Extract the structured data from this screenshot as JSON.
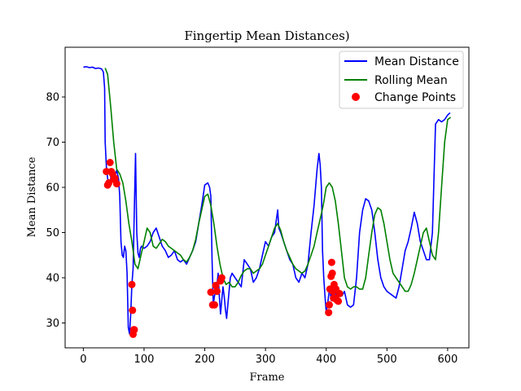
{
  "chart_data": {
    "type": "line",
    "title": "Fingertip Mean Distances)",
    "xlabel": "Frame",
    "ylabel": "Mean Distance",
    "xlim": [
      -30,
      635
    ],
    "ylim": [
      24.5,
      91
    ],
    "xticks": [
      0,
      100,
      200,
      300,
      400,
      500,
      600
    ],
    "yticks": [
      30,
      40,
      50,
      60,
      70,
      80
    ],
    "legend_position": "top-right",
    "grid": false,
    "series": [
      {
        "name": "Mean Distance",
        "kind": "line",
        "color": "#0000ff",
        "x": [
          0,
          5,
          10,
          15,
          20,
          25,
          30,
          33,
          35,
          36,
          38,
          40,
          42,
          44,
          46,
          48,
          50,
          52,
          55,
          58,
          60,
          62,
          64,
          66,
          68,
          70,
          72,
          74,
          76,
          78,
          80,
          82,
          84,
          86,
          88,
          90,
          92,
          94,
          96,
          100,
          105,
          110,
          115,
          120,
          125,
          130,
          135,
          140,
          145,
          150,
          155,
          160,
          165,
          170,
          175,
          180,
          185,
          190,
          195,
          200,
          205,
          208,
          210,
          212,
          214,
          216,
          218,
          220,
          222,
          224,
          226,
          228,
          230,
          232,
          234,
          236,
          238,
          240,
          242,
          245,
          250,
          255,
          260,
          265,
          270,
          275,
          280,
          285,
          290,
          295,
          300,
          305,
          310,
          315,
          318,
          320,
          322,
          325,
          330,
          335,
          340,
          345,
          350,
          355,
          360,
          365,
          370,
          375,
          380,
          385,
          388,
          390,
          392,
          394,
          396,
          398,
          400,
          402,
          404,
          406,
          408,
          410,
          412,
          414,
          416,
          418,
          420,
          423,
          426,
          430,
          435,
          440,
          445,
          450,
          455,
          460,
          465,
          470,
          475,
          480,
          485,
          490,
          495,
          500,
          505,
          510,
          515,
          520,
          525,
          530,
          535,
          540,
          545,
          550,
          555,
          560,
          565,
          570,
          575,
          580,
          585,
          590,
          595,
          600,
          604
        ],
        "y": [
          86.6,
          86.7,
          86.5,
          86.6,
          86.3,
          86.4,
          86.2,
          85.5,
          82,
          70,
          64.5,
          62,
          60.5,
          61,
          63,
          64,
          63.5,
          62.5,
          63.8,
          62,
          58,
          48,
          45,
          44.5,
          47,
          46,
          41,
          29,
          27.6,
          32,
          38.5,
          42,
          55,
          67.5,
          50,
          45.5,
          44.5,
          46.5,
          47,
          46.5,
          47,
          48,
          50,
          51,
          49,
          47,
          46,
          44.5,
          45,
          46,
          44,
          43.5,
          44,
          43,
          44.5,
          46,
          48,
          52,
          56,
          60.5,
          61,
          60,
          58,
          44,
          34,
          36,
          37,
          38.5,
          41,
          36,
          32,
          35,
          38,
          36,
          33,
          31,
          34,
          37,
          40,
          41,
          40,
          39,
          38,
          44,
          43,
          42,
          39,
          40,
          42,
          45,
          48,
          47,
          49,
          50,
          53,
          55,
          51,
          50,
          48,
          46,
          44,
          43,
          40,
          39,
          41,
          40,
          43,
          50,
          56,
          64,
          67.5,
          65,
          60,
          46,
          40,
          36,
          32.5,
          34,
          36,
          38,
          35,
          37,
          38,
          39,
          36,
          35,
          36,
          36.5,
          36,
          37,
          34,
          33.5,
          34,
          40,
          50,
          55,
          57.5,
          57,
          55,
          50,
          44,
          40,
          38,
          37,
          36.5,
          36,
          35.5,
          38,
          42,
          46,
          48,
          51,
          54.5,
          52,
          48,
          46,
          44,
          44,
          50,
          74,
          75,
          74.5,
          75,
          76,
          76.5
        ]
      },
      {
        "name": "Rolling Mean",
        "kind": "line",
        "color": "#008000",
        "x": [
          36,
          40,
          45,
          50,
          55,
          60,
          65,
          70,
          75,
          80,
          85,
          90,
          95,
          100,
          105,
          110,
          115,
          120,
          125,
          130,
          135,
          140,
          145,
          150,
          155,
          160,
          165,
          170,
          175,
          180,
          185,
          190,
          195,
          200,
          205,
          210,
          215,
          220,
          225,
          230,
          235,
          240,
          245,
          250,
          255,
          260,
          265,
          270,
          275,
          280,
          285,
          290,
          295,
          300,
          305,
          310,
          315,
          320,
          325,
          330,
          335,
          340,
          345,
          350,
          355,
          360,
          365,
          370,
          375,
          380,
          385,
          390,
          395,
          400,
          405,
          410,
          415,
          420,
          425,
          430,
          435,
          440,
          445,
          450,
          455,
          460,
          465,
          470,
          475,
          480,
          485,
          490,
          495,
          500,
          505,
          510,
          515,
          520,
          525,
          530,
          535,
          540,
          545,
          550,
          555,
          560,
          565,
          570,
          575,
          580,
          585,
          590,
          595,
          600,
          605
        ],
        "y": [
          86.4,
          85,
          78,
          70,
          64,
          63,
          61,
          57,
          52,
          48,
          43,
          42,
          45,
          48,
          51,
          50,
          47,
          46.5,
          47.5,
          48.5,
          48,
          47,
          46.5,
          46,
          45.5,
          45,
          44,
          43.5,
          44.5,
          46,
          48.5,
          52,
          55,
          58,
          58.5,
          56,
          52,
          47,
          43,
          40,
          38.5,
          39,
          38,
          38,
          39,
          40.5,
          41.5,
          42,
          42,
          41,
          41.5,
          42,
          43,
          45,
          47,
          49,
          51,
          52,
          50.5,
          48,
          46,
          44.5,
          43,
          42,
          41.5,
          41,
          41.5,
          43,
          45,
          47,
          50,
          53,
          56,
          60,
          61,
          60,
          57,
          52,
          46,
          40,
          38,
          37.5,
          38,
          38,
          37.5,
          37.5,
          40,
          45,
          50,
          54,
          55.5,
          55,
          52,
          48,
          44,
          41,
          40,
          39,
          38,
          37,
          37,
          38.5,
          41,
          44,
          47,
          50,
          51,
          48,
          45,
          44,
          50,
          60,
          70,
          75,
          75.5
        ]
      }
    ],
    "change_points": {
      "name": "Change Points",
      "color": "#ff0000",
      "x": [
        38,
        40,
        42,
        44,
        46,
        48,
        50,
        52,
        55,
        80,
        81,
        82,
        83,
        84,
        210,
        213,
        216,
        218,
        220,
        226,
        228,
        404,
        405,
        406,
        408,
        409,
        410,
        411,
        412,
        413,
        414,
        416,
        418,
        420,
        422
      ],
      "y": [
        63.5,
        60.5,
        61,
        65.5,
        63.5,
        63,
        61.8,
        62,
        60.8,
        38.5,
        32.8,
        27.5,
        28.5,
        28.5,
        36.8,
        34,
        34,
        38.3,
        37,
        39.3,
        40,
        32.3,
        34,
        37.5,
        40.3,
        43.4,
        41,
        37,
        35.5,
        38.5,
        35.5,
        37.5,
        35,
        34.8,
        36.5
      ]
    }
  }
}
